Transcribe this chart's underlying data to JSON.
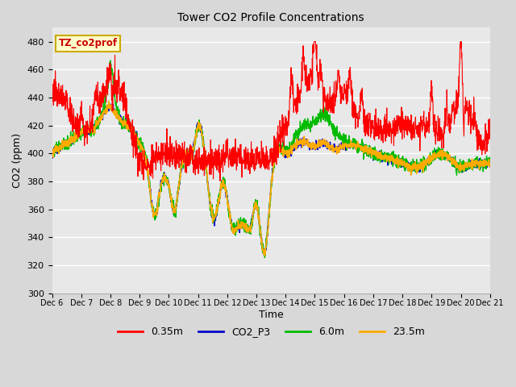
{
  "title": "Tower CO2 Profile Concentrations",
  "xlabel": "Time",
  "ylabel": "CO2 (ppm)",
  "ylim": [
    300,
    490
  ],
  "yticks": [
    300,
    320,
    340,
    360,
    380,
    400,
    420,
    440,
    460,
    480
  ],
  "annotation_text": "TZ_co2prof",
  "annotation_color": "#cc0000",
  "annotation_bg": "#ffffcc",
  "annotation_border": "#ccaa00",
  "bg_color": "#d8d8d8",
  "plot_bg": "#e8e8e8",
  "grid_color": "#ffffff",
  "line_colors": {
    "0.35m": "#ff0000",
    "CO2_P3": "#0000cc",
    "6.0m": "#00bb00",
    "23.5m": "#ffaa00"
  },
  "xtick_labels": [
    "Dec 6",
    "Dec 7",
    "Dec 8",
    "Dec 9",
    "Dec 10",
    "Dec 11",
    "Dec 12",
    "Dec 13",
    "Dec 14",
    "Dec 15",
    "Dec 16",
    "Dec 17",
    "Dec 18",
    "Dec 19",
    "Dec 20",
    "Dec 21"
  ],
  "num_points": 2000
}
